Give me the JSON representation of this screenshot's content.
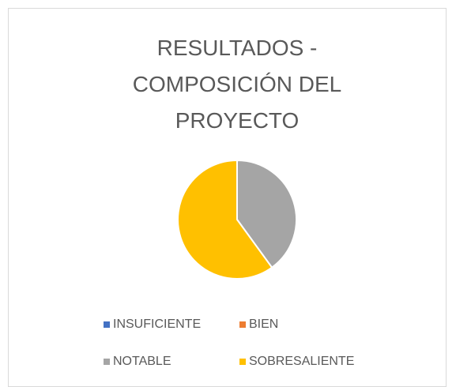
{
  "chart_data": {
    "type": "pie",
    "title": "RESULTADOS - COMPOSICIÓN DEL PROYECTO",
    "categories": [
      "INSUFICIENTE",
      "BIEN",
      "NOTABLE",
      "SOBRESALIENTE"
    ],
    "values": [
      0,
      0,
      40,
      60
    ],
    "colors": [
      "#4472c4",
      "#ed7d31",
      "#a5a5a5",
      "#ffc000"
    ],
    "legend": "bottom"
  }
}
